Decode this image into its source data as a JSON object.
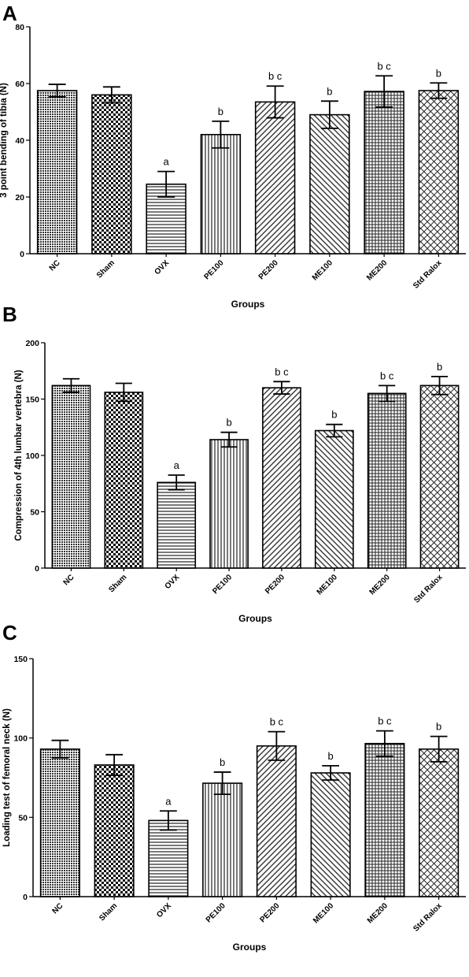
{
  "chart_data": [
    {
      "panel": "A",
      "type": "bar",
      "categories": [
        "NC",
        "Sham",
        "OVX",
        "PE100",
        "PE200",
        "ME100",
        "ME200",
        "Std Ralox"
      ],
      "values": [
        57.5,
        56,
        24.5,
        42,
        53.5,
        49,
        57.2,
        57.5
      ],
      "errors": [
        2.2,
        2.8,
        4.5,
        4.7,
        5.6,
        4.8,
        5.5,
        2.7
      ],
      "annotations": [
        "",
        "",
        "a",
        "b",
        "b c",
        "b",
        "b c",
        "b"
      ],
      "xlabel": "Groups",
      "ylabel": "3 point bending of tibia (N)",
      "ylim": [
        0,
        80
      ],
      "yticks": [
        0,
        20,
        40,
        60,
        80
      ],
      "grid": false
    },
    {
      "panel": "B",
      "type": "bar",
      "categories": [
        "NC",
        "Sham",
        "OVX",
        "PE100",
        "PE200",
        "ME100",
        "ME200",
        "Std Ralox"
      ],
      "values": [
        162,
        156,
        76,
        114,
        160,
        122,
        155,
        162
      ],
      "errors": [
        6,
        8,
        6.5,
        6.5,
        5.5,
        5.5,
        7,
        8
      ],
      "annotations": [
        "",
        "",
        "a",
        "b",
        "b c",
        "b",
        "b c",
        "b"
      ],
      "xlabel": "Groups",
      "ylabel": "Compression of 4th lumbar vertebra (N)",
      "ylim": [
        0,
        200
      ],
      "yticks": [
        0,
        50,
        100,
        150,
        200
      ],
      "grid": false
    },
    {
      "panel": "C",
      "type": "bar",
      "categories": [
        "NC",
        "Sham",
        "OVX",
        "PE100",
        "PE200",
        "ME100",
        "ME200",
        "Std Ralox"
      ],
      "values": [
        93,
        83,
        48,
        71.5,
        95,
        78,
        96.5,
        93
      ],
      "errors": [
        5.5,
        6.5,
        6,
        7,
        9,
        4.5,
        8,
        8
      ],
      "annotations": [
        "",
        "",
        "a",
        "b",
        "b c",
        "b",
        "b c",
        "b"
      ],
      "xlabel": "Groups",
      "ylabel": "Loading test of femoral neck (N)",
      "ylim": [
        0,
        150
      ],
      "yticks": [
        0,
        50,
        100,
        150
      ],
      "grid": false
    }
  ]
}
